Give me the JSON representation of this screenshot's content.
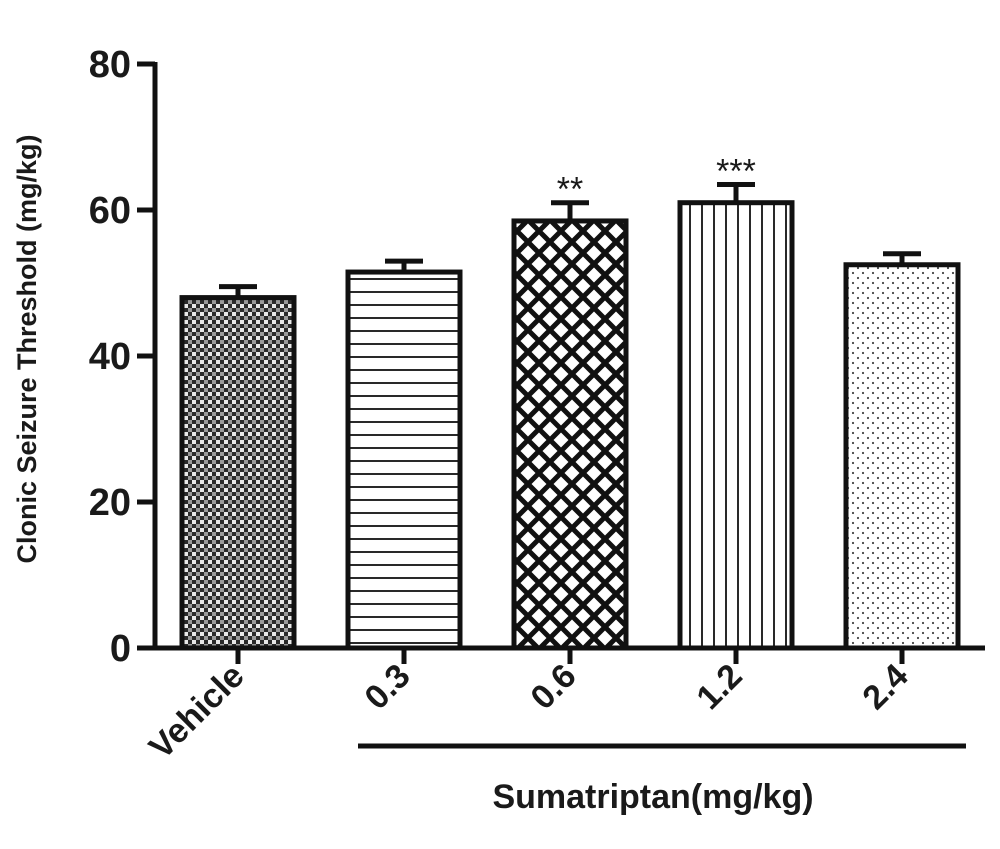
{
  "chart_data": {
    "type": "bar",
    "title": "",
    "ylabel": "Clonic Seizure Threshold (mg/kg)",
    "xlabel": "Sumatriptan(mg/kg)",
    "ylim": [
      0,
      80
    ],
    "yticks": [
      "0",
      "20",
      "40",
      "60",
      "80"
    ],
    "categories": [
      "Vehicle",
      "0.3",
      "0.6",
      "1.2",
      "2.4"
    ],
    "values": [
      48,
      51.5,
      58.5,
      61,
      52.5
    ],
    "errors": [
      1.5,
      1.5,
      2.5,
      2.5,
      1.5
    ],
    "significance": [
      "",
      "",
      "**",
      "***",
      ""
    ],
    "patterns": [
      "checker",
      "horizontal-lines",
      "crosshatch",
      "vertical-lines",
      "dots"
    ],
    "grid": false,
    "legend": "none"
  }
}
